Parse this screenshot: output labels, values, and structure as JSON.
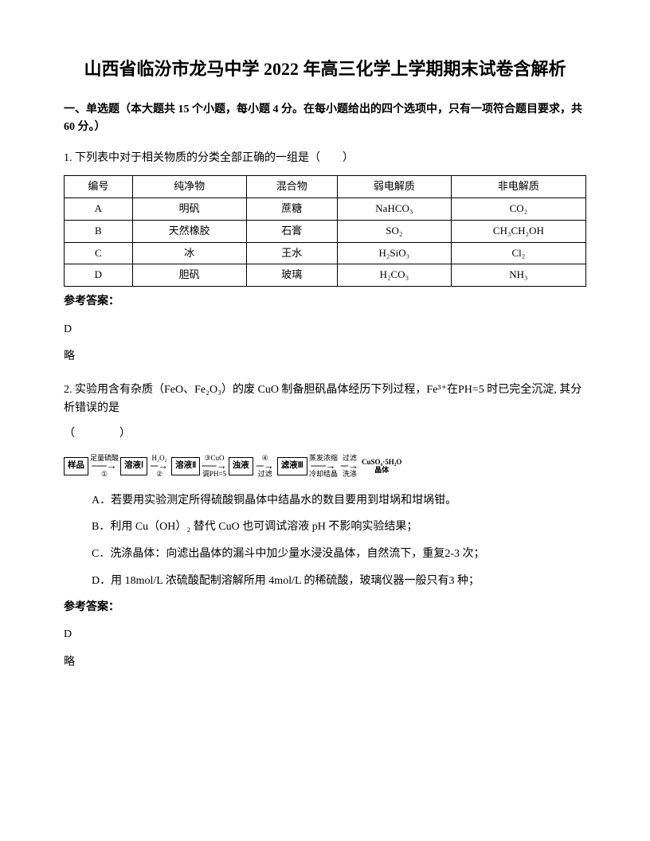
{
  "title": "山西省临汾市龙马中学 2022 年高三化学上学期期末试卷含解析",
  "section_intro": "一、单选题（本大题共 15 个小题，每小题 4 分。在每小题给出的四个选项中，只有一项符合题目要求，共 60 分。）",
  "q1": {
    "text": "1. 下列表中对于相关物质的分类全部正确的一组是（　　）",
    "table": {
      "headers": [
        "编号",
        "纯净物",
        "混合物",
        "弱电解质",
        "非电解质"
      ],
      "rows": [
        [
          "A",
          "明矾",
          "蔗糖",
          "NaHCO₃",
          "CO₂"
        ],
        [
          "B",
          "天然橡胶",
          "石膏",
          "SO₂",
          "CH₃CH₂OH"
        ],
        [
          "C",
          "冰",
          "王水",
          "H₂SiO₃",
          "Cl₂"
        ],
        [
          "D",
          "胆矾",
          "玻璃",
          "H₂CO₃",
          "NH₃"
        ]
      ]
    },
    "answer_label": "参考答案：",
    "answer": "D",
    "answer_extra": "略"
  },
  "q2": {
    "text_line1": "2. 实验用含有杂质（FeO、Fe₂O₃）的废 CuO 制备胆矾晶体经历下列过程，Fe³⁺在PH=5 时已完全沉淀, 其分析错误的是",
    "text_line2": "（　　　　）",
    "flow": {
      "box1": "样品",
      "arrow1_top": "足量硫酸",
      "arrow1_bot": "①",
      "box2": "溶液Ⅰ",
      "arrow2_top": "H₂O₂",
      "arrow2_bot": "②",
      "box3": "溶液Ⅱ",
      "arrow3_top": "③CuO",
      "arrow3_bot": "调PH=5",
      "box4": "浊液",
      "arrow4_top": "④",
      "arrow4_bot": "过滤",
      "box5": "滤液Ⅲ",
      "arrow5_top": "蒸发浓缩",
      "arrow5_bot": "冷却结晶",
      "arrow6_top": "过滤",
      "arrow6_bot": "洗涤",
      "box6_top": "CuSO₄·5H₂O",
      "box6_bot": "晶体"
    },
    "options": {
      "A": "A．若要用实验测定所得硫酸铜晶体中结晶水的数目要用到坩埚和坩埚钳。",
      "B": "B．利用 Cu（OH）₂ 替代 CuO 也可调试溶液 pH 不影响实验结果；",
      "C": "C．洗涤晶体：向滤出晶体的漏斗中加少量水浸没晶体，自然流下，重复2-3 次；",
      "D": "D．用 18mol/L 浓硫酸配制溶解所用 4mol/L 的稀硫酸，玻璃仪器一般只有3 种；"
    },
    "answer_label": "参考答案：",
    "answer": "D",
    "answer_extra": "略"
  }
}
